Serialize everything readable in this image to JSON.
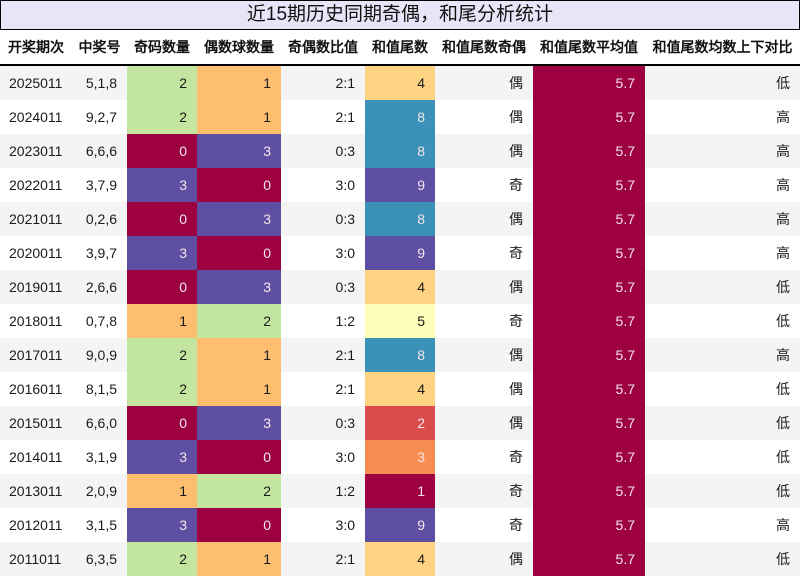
{
  "title": "近15期历史同期奇偶，和尾分析统计",
  "columns": [
    "开奖期次",
    "中奖号",
    "奇码数量",
    "偶数球数量",
    "奇偶数比值",
    "和值尾数",
    "和值尾数奇偶",
    "和值尾数平均值",
    "和值尾数均数上下对比"
  ],
  "colors": {
    "green": "#c2e5a0",
    "orange": "#fdbe70",
    "crimson": "#9e0142",
    "purple": "#5e4fa2",
    "teal": "#3c91b8",
    "yellow_light": "#fefdba",
    "yellow": "#fed382",
    "red": "#dc4b4c",
    "orange_deep": "#f88c51"
  },
  "rows": [
    {
      "period": "2025011",
      "numbers": "5,1,8",
      "odd": "2",
      "even": "1",
      "ratio": "2:1",
      "tail": "4",
      "tail_parity": "偶",
      "avg": "5.7",
      "cmp": "低",
      "odd_color": "#c2e5a0",
      "even_color": "#fdbe70",
      "tail_color": "#fed382",
      "odd_light": false,
      "even_light": false,
      "tail_light": false
    },
    {
      "period": "2024011",
      "numbers": "9,2,7",
      "odd": "2",
      "even": "1",
      "ratio": "2:1",
      "tail": "8",
      "tail_parity": "偶",
      "avg": "5.7",
      "cmp": "高",
      "odd_color": "#c2e5a0",
      "even_color": "#fdbe70",
      "tail_color": "#3c91b8",
      "odd_light": false,
      "even_light": false,
      "tail_light": true
    },
    {
      "period": "2023011",
      "numbers": "6,6,6",
      "odd": "0",
      "even": "3",
      "ratio": "0:3",
      "tail": "8",
      "tail_parity": "偶",
      "avg": "5.7",
      "cmp": "高",
      "odd_color": "#9e0142",
      "even_color": "#5e4fa2",
      "tail_color": "#3c91b8",
      "odd_light": true,
      "even_light": true,
      "tail_light": true
    },
    {
      "period": "2022011",
      "numbers": "3,7,9",
      "odd": "3",
      "even": "0",
      "ratio": "3:0",
      "tail": "9",
      "tail_parity": "奇",
      "avg": "5.7",
      "cmp": "高",
      "odd_color": "#5e4fa2",
      "even_color": "#9e0142",
      "tail_color": "#5e4fa2",
      "odd_light": true,
      "even_light": true,
      "tail_light": true
    },
    {
      "period": "2021011",
      "numbers": "0,2,6",
      "odd": "0",
      "even": "3",
      "ratio": "0:3",
      "tail": "8",
      "tail_parity": "偶",
      "avg": "5.7",
      "cmp": "高",
      "odd_color": "#9e0142",
      "even_color": "#5e4fa2",
      "tail_color": "#3c91b8",
      "odd_light": true,
      "even_light": true,
      "tail_light": true
    },
    {
      "period": "2020011",
      "numbers": "3,9,7",
      "odd": "3",
      "even": "0",
      "ratio": "3:0",
      "tail": "9",
      "tail_parity": "奇",
      "avg": "5.7",
      "cmp": "高",
      "odd_color": "#5e4fa2",
      "even_color": "#9e0142",
      "tail_color": "#5e4fa2",
      "odd_light": true,
      "even_light": true,
      "tail_light": true
    },
    {
      "period": "2019011",
      "numbers": "2,6,6",
      "odd": "0",
      "even": "3",
      "ratio": "0:3",
      "tail": "4",
      "tail_parity": "偶",
      "avg": "5.7",
      "cmp": "低",
      "odd_color": "#9e0142",
      "even_color": "#5e4fa2",
      "tail_color": "#fed382",
      "odd_light": true,
      "even_light": true,
      "tail_light": false
    },
    {
      "period": "2018011",
      "numbers": "0,7,8",
      "odd": "1",
      "even": "2",
      "ratio": "1:2",
      "tail": "5",
      "tail_parity": "奇",
      "avg": "5.7",
      "cmp": "低",
      "odd_color": "#fdbe70",
      "even_color": "#c2e5a0",
      "tail_color": "#fefdba",
      "odd_light": false,
      "even_light": false,
      "tail_light": false
    },
    {
      "period": "2017011",
      "numbers": "9,0,9",
      "odd": "2",
      "even": "1",
      "ratio": "2:1",
      "tail": "8",
      "tail_parity": "偶",
      "avg": "5.7",
      "cmp": "高",
      "odd_color": "#c2e5a0",
      "even_color": "#fdbe70",
      "tail_color": "#3c91b8",
      "odd_light": false,
      "even_light": false,
      "tail_light": true
    },
    {
      "period": "2016011",
      "numbers": "8,1,5",
      "odd": "2",
      "even": "1",
      "ratio": "2:1",
      "tail": "4",
      "tail_parity": "偶",
      "avg": "5.7",
      "cmp": "低",
      "odd_color": "#c2e5a0",
      "even_color": "#fdbe70",
      "tail_color": "#fed382",
      "odd_light": false,
      "even_light": false,
      "tail_light": false
    },
    {
      "period": "2015011",
      "numbers": "6,6,0",
      "odd": "0",
      "even": "3",
      "ratio": "0:3",
      "tail": "2",
      "tail_parity": "偶",
      "avg": "5.7",
      "cmp": "低",
      "odd_color": "#9e0142",
      "even_color": "#5e4fa2",
      "tail_color": "#dc4b4c",
      "odd_light": true,
      "even_light": true,
      "tail_light": true
    },
    {
      "period": "2014011",
      "numbers": "3,1,9",
      "odd": "3",
      "even": "0",
      "ratio": "3:0",
      "tail": "3",
      "tail_parity": "奇",
      "avg": "5.7",
      "cmp": "低",
      "odd_color": "#5e4fa2",
      "even_color": "#9e0142",
      "tail_color": "#f88c51",
      "odd_light": true,
      "even_light": true,
      "tail_light": true
    },
    {
      "period": "2013011",
      "numbers": "2,0,9",
      "odd": "1",
      "even": "2",
      "ratio": "1:2",
      "tail": "1",
      "tail_parity": "奇",
      "avg": "5.7",
      "cmp": "低",
      "odd_color": "#fdbe70",
      "even_color": "#c2e5a0",
      "tail_color": "#9e0142",
      "odd_light": false,
      "even_light": false,
      "tail_light": true
    },
    {
      "period": "2012011",
      "numbers": "3,1,5",
      "odd": "3",
      "even": "0",
      "ratio": "3:0",
      "tail": "9",
      "tail_parity": "奇",
      "avg": "5.7",
      "cmp": "高",
      "odd_color": "#5e4fa2",
      "even_color": "#9e0142",
      "tail_color": "#5e4fa2",
      "odd_light": true,
      "even_light": true,
      "tail_light": true
    },
    {
      "period": "2011011",
      "numbers": "6,3,5",
      "odd": "2",
      "even": "1",
      "ratio": "2:1",
      "tail": "4",
      "tail_parity": "偶",
      "avg": "5.7",
      "cmp": "低",
      "odd_color": "#c2e5a0",
      "even_color": "#fdbe70",
      "tail_color": "#fed382",
      "odd_light": false,
      "even_light": false,
      "tail_light": false
    }
  ],
  "avg_color": "#9e0142"
}
